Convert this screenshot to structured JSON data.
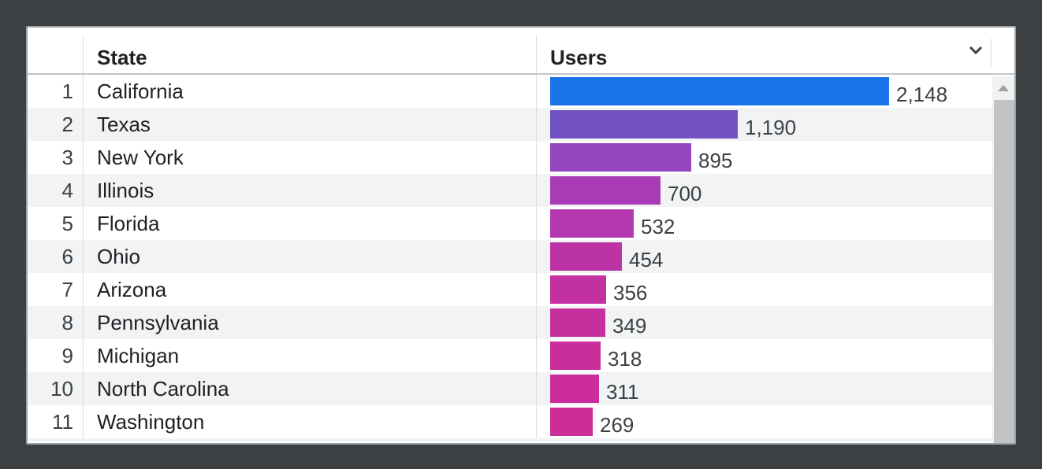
{
  "theme": {
    "page_background": "#3c4043",
    "card_background": "#ffffff",
    "zebra_row_background": "#f1f3f4",
    "header_border": "#c2c6c9",
    "column_divider": "#dadce0",
    "text_primary": "#202124",
    "text_secondary": "#3c4043",
    "scrollbar_track": "#f0f1f1",
    "scrollbar_thumb": "#c1c3c4"
  },
  "header": {
    "rank_label": "",
    "state_label": "State",
    "users_label": "Users",
    "sort_icon": "chevron-down-icon"
  },
  "rows": [
    {
      "rank": "1",
      "state": "California",
      "users": 2148,
      "users_display": "2,148",
      "color": "#1a73e8"
    },
    {
      "rank": "2",
      "state": "Texas",
      "users": 1190,
      "users_display": "1,190",
      "color": "#7251c2"
    },
    {
      "rank": "3",
      "state": "New York",
      "users": 895,
      "users_display": "895",
      "color": "#9346bf"
    },
    {
      "rank": "4",
      "state": "Illinois",
      "users": 700,
      "users_display": "700",
      "color": "#a93cb6"
    },
    {
      "rank": "5",
      "state": "Florida",
      "users": 532,
      "users_display": "532",
      "color": "#b338af"
    },
    {
      "rank": "6",
      "state": "Ohio",
      "users": 454,
      "users_display": "454",
      "color": "#bc33a6"
    },
    {
      "rank": "7",
      "state": "Arizona",
      "users": 356,
      "users_display": "356",
      "color": "#c330a0"
    },
    {
      "rank": "8",
      "state": "Pennsylvania",
      "users": 349,
      "users_display": "349",
      "color": "#c62f9e"
    },
    {
      "rank": "9",
      "state": "Michigan",
      "users": 318,
      "users_display": "318",
      "color": "#c92e9b"
    },
    {
      "rank": "10",
      "state": "North Carolina",
      "users": 311,
      "users_display": "311",
      "color": "#cb2e9a"
    },
    {
      "rank": "11",
      "state": "Washington",
      "users": 269,
      "users_display": "269",
      "color": "#cc2d99"
    }
  ],
  "chart_data": {
    "type": "bar",
    "orientation": "horizontal",
    "title": "",
    "xlabel": "Users",
    "ylabel": "State",
    "categories": [
      "California",
      "Texas",
      "New York",
      "Illinois",
      "Florida",
      "Ohio",
      "Arizona",
      "Pennsylvania",
      "Michigan",
      "North Carolina",
      "Washington"
    ],
    "values": [
      2148,
      1190,
      895,
      700,
      532,
      454,
      356,
      349,
      318,
      311,
      269
    ],
    "value_labels": [
      "2,148",
      "1,190",
      "895",
      "700",
      "532",
      "454",
      "356",
      "349",
      "318",
      "311",
      "269"
    ],
    "bar_colors": [
      "#1a73e8",
      "#7251c2",
      "#9346bf",
      "#a93cb6",
      "#b338af",
      "#bc33a6",
      "#c330a0",
      "#c62f9e",
      "#c92e9b",
      "#cb2e9a",
      "#cc2d99"
    ],
    "xlim": [
      0,
      2148
    ],
    "grid": false,
    "legend": false
  }
}
